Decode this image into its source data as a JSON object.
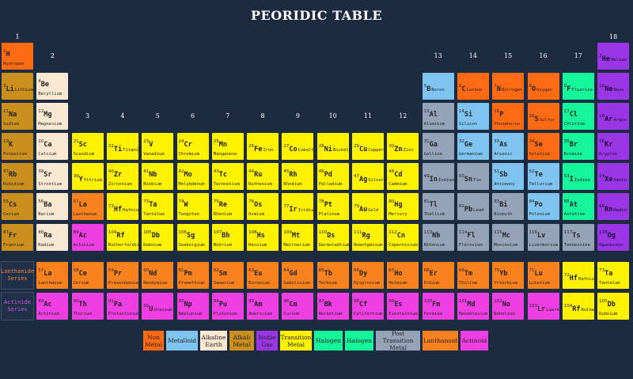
{
  "title": "PEORIDIC TABLE",
  "group_headers": [
    {
      "label": "1",
      "col": 1,
      "row": 0
    },
    {
      "label": "2",
      "col": 2,
      "row": 1
    },
    {
      "label": "13",
      "col": 13,
      "row": 1
    },
    {
      "label": "14",
      "col": 14,
      "row": 1
    },
    {
      "label": "15",
      "col": 15,
      "row": 1
    },
    {
      "label": "16",
      "col": 16,
      "row": 1
    },
    {
      "label": "17",
      "col": 17,
      "row": 1
    },
    {
      "label": "18",
      "col": 18,
      "row": 0
    },
    {
      "label": "3",
      "col": 3,
      "row": 3
    },
    {
      "label": "4",
      "col": 4,
      "row": 3
    },
    {
      "label": "5",
      "col": 5,
      "row": 3
    },
    {
      "label": "6",
      "col": 6,
      "row": 3
    },
    {
      "label": "7",
      "col": 7,
      "row": 3
    },
    {
      "label": "8",
      "col": 8,
      "row": 3
    },
    {
      "label": "9",
      "col": 9,
      "row": 3
    },
    {
      "label": "10",
      "col": 10,
      "row": 3
    },
    {
      "label": "11",
      "col": 11,
      "row": 3
    },
    {
      "label": "12",
      "col": 12,
      "row": 3
    }
  ],
  "colors": {
    "nonmetal": "#ff6a13",
    "metalloid": "#7fc4f1",
    "alkaline": "#fae9d2",
    "alkali": "#cb8f1e",
    "noble": "#9b36e7",
    "transition": "#fff200",
    "halogen": "#15f59a",
    "posttransition": "#95a3b8",
    "lanthanide": "#fa821e",
    "actinide": "#ef3fe3",
    "lanthanide_label": "#f28a3f",
    "actinide_label": "#ca5ce0"
  },
  "series_labels": {
    "lanthanide": "Lanthanide Series",
    "actinide": "Actinide Series"
  },
  "legend": [
    {
      "label": "Non Metal",
      "cat": "nonmetal"
    },
    {
      "label": "Metalloid",
      "cat": "metalloid"
    },
    {
      "label": "Alkaline Earth",
      "cat": "alkaline"
    },
    {
      "label": "Alkali Metal",
      "cat": "alkali"
    },
    {
      "label": "Noble Gas",
      "cat": "noble"
    },
    {
      "label": "Transition Metal",
      "cat": "transition"
    },
    {
      "label": "Halogen",
      "cat": "halogen"
    },
    {
      "label": "Halogen",
      "cat": "halogen"
    },
    {
      "label": "Post Transition Metal",
      "cat": "posttransition"
    },
    {
      "label": "Lanthanoid",
      "cat": "lanthanide"
    },
    {
      "label": "Actinoid",
      "cat": "actinide"
    }
  ],
  "elements": [
    {
      "n": 1,
      "s": "H",
      "name": "Hydrogen",
      "cat": "nonmetal",
      "col": 1,
      "row": 1
    },
    {
      "n": 2,
      "s": "He",
      "name": "Helium",
      "cat": "noble",
      "col": 18,
      "row": 1,
      "inline": true
    },
    {
      "n": 3,
      "s": "Li",
      "name": "Lithium",
      "cat": "alkali",
      "col": 1,
      "row": 2,
      "inline": true
    },
    {
      "n": 4,
      "s": "Be",
      "name": "Beryllium",
      "cat": "alkaline",
      "col": 2,
      "row": 2
    },
    {
      "n": 5,
      "s": "B",
      "name": "Boron",
      "cat": "metalloid",
      "col": 13,
      "row": 2,
      "inline": true
    },
    {
      "n": 6,
      "s": "C",
      "name": "Carbon",
      "cat": "nonmetal",
      "col": 14,
      "row": 2,
      "inline": true
    },
    {
      "n": 7,
      "s": "N",
      "name": "Nitrogen",
      "cat": "nonmetal",
      "col": 15,
      "row": 2,
      "inline": true
    },
    {
      "n": 8,
      "s": "O",
      "name": "Oxygen",
      "cat": "nonmetal",
      "col": 16,
      "row": 2,
      "inline": true
    },
    {
      "n": 9,
      "s": "F",
      "name": "Fluorine",
      "cat": "halogen",
      "col": 17,
      "row": 2,
      "inline": true
    },
    {
      "n": 10,
      "s": "Ne",
      "name": "Neon",
      "cat": "noble",
      "col": 18,
      "row": 2,
      "inline": true
    },
    {
      "n": 11,
      "s": "Na",
      "name": "Sodium",
      "cat": "alkali",
      "col": 1,
      "row": 3
    },
    {
      "n": 12,
      "s": "Mg",
      "name": "Magnesium",
      "cat": "alkaline",
      "col": 2,
      "row": 3
    },
    {
      "n": 13,
      "s": "Al",
      "name": "Aluminum",
      "cat": "posttransition",
      "col": 13,
      "row": 3
    },
    {
      "n": 14,
      "s": "Si",
      "name": "Silicon",
      "cat": "metalloid",
      "col": 14,
      "row": 3
    },
    {
      "n": 15,
      "s": "P",
      "name": "Phosphorus",
      "cat": "nonmetal",
      "col": 15,
      "row": 3
    },
    {
      "n": 16,
      "s": "S",
      "name": "Sulfur",
      "cat": "nonmetal",
      "col": 16,
      "row": 3,
      "inline": true
    },
    {
      "n": 17,
      "s": "Cl",
      "name": "Chlorine",
      "cat": "halogen",
      "col": 17,
      "row": 3
    },
    {
      "n": 18,
      "s": "Ar",
      "name": "Argon",
      "cat": "noble",
      "col": 18,
      "row": 3,
      "inline": true
    },
    {
      "n": 19,
      "s": "K",
      "name": "Potassium",
      "cat": "alkali",
      "col": 1,
      "row": 4
    },
    {
      "n": 20,
      "s": "Ca",
      "name": "Calcium",
      "cat": "alkaline",
      "col": 2,
      "row": 4
    },
    {
      "n": 21,
      "s": "Sc",
      "name": "Scandium",
      "cat": "transition",
      "col": 3,
      "row": 4
    },
    {
      "n": 22,
      "s": "Ti",
      "name": "Titanium",
      "cat": "transition",
      "col": 4,
      "row": 4,
      "inline": true
    },
    {
      "n": 23,
      "s": "V",
      "name": "Vanadium",
      "cat": "transition",
      "col": 5,
      "row": 4
    },
    {
      "n": 24,
      "s": "Cr",
      "name": "Chromium",
      "cat": "transition",
      "col": 6,
      "row": 4
    },
    {
      "n": 25,
      "s": "Mn",
      "name": "Manganese",
      "cat": "transition",
      "col": 7,
      "row": 4
    },
    {
      "n": 26,
      "s": "Fe",
      "name": "Iron",
      "cat": "transition",
      "col": 8,
      "row": 4,
      "inline": true
    },
    {
      "n": 27,
      "s": "Co",
      "name": "Cobalt",
      "cat": "transition",
      "col": 9,
      "row": 4,
      "inline": true
    },
    {
      "n": 28,
      "s": "Ni",
      "name": "Nickel",
      "cat": "transition",
      "col": 10,
      "row": 4,
      "inline": true
    },
    {
      "n": 29,
      "s": "Cu",
      "name": "Copper",
      "cat": "transition",
      "col": 11,
      "row": 4,
      "inline": true
    },
    {
      "n": 30,
      "s": "Zn",
      "name": "Zinc",
      "cat": "transition",
      "col": 12,
      "row": 4,
      "inline": true
    },
    {
      "n": 31,
      "s": "Ga",
      "name": "Gallium",
      "cat": "posttransition",
      "col": 13,
      "row": 4
    },
    {
      "n": 32,
      "s": "Ge",
      "name": "Germanium",
      "cat": "metalloid",
      "col": 14,
      "row": 4
    },
    {
      "n": 33,
      "s": "As",
      "name": "Arsenic",
      "cat": "metalloid",
      "col": 15,
      "row": 4
    },
    {
      "n": 34,
      "s": "Se",
      "name": "Selenium",
      "cat": "nonmetal",
      "col": 16,
      "row": 4
    },
    {
      "n": 35,
      "s": "Br",
      "name": "Bromine",
      "cat": "halogen",
      "col": 17,
      "row": 4
    },
    {
      "n": 36,
      "s": "Kr",
      "name": "Krypton",
      "cat": "noble",
      "col": 18,
      "row": 4
    },
    {
      "n": 37,
      "s": "Rb",
      "name": "Rubidium",
      "cat": "alkali",
      "col": 1,
      "row": 5
    },
    {
      "n": 38,
      "s": "Sr",
      "name": "Strontium",
      "cat": "alkaline",
      "col": 2,
      "row": 5
    },
    {
      "n": 39,
      "s": "Y",
      "name": "Yttrium",
      "cat": "transition",
      "col": 3,
      "row": 5,
      "inline": true
    },
    {
      "n": 40,
      "s": "Zr",
      "name": "Zirconium",
      "cat": "transition",
      "col": 4,
      "row": 5
    },
    {
      "n": 41,
      "s": "Nb",
      "name": "Niobium",
      "cat": "transition",
      "col": 5,
      "row": 5
    },
    {
      "n": 42,
      "s": "Mo",
      "name": "Molybdenum",
      "cat": "transition",
      "col": 6,
      "row": 5
    },
    {
      "n": 43,
      "s": "Tc",
      "name": "Technetium",
      "cat": "transition",
      "col": 7,
      "row": 5
    },
    {
      "n": 44,
      "s": "Ru",
      "name": "Ruthenium",
      "cat": "transition",
      "col": 8,
      "row": 5
    },
    {
      "n": 45,
      "s": "Rh",
      "name": "Rhodium",
      "cat": "transition",
      "col": 9,
      "row": 5
    },
    {
      "n": 46,
      "s": "Pd",
      "name": "Palladium",
      "cat": "transition",
      "col": 10,
      "row": 5
    },
    {
      "n": 47,
      "s": "Ag",
      "name": "Silver",
      "cat": "transition",
      "col": 11,
      "row": 5,
      "inline": true
    },
    {
      "n": 48,
      "s": "Cd",
      "name": "Cadmium",
      "cat": "transition",
      "col": 12,
      "row": 5
    },
    {
      "n": 49,
      "s": "In",
      "name": "Indium",
      "cat": "posttransition",
      "col": 13,
      "row": 5,
      "inline": true
    },
    {
      "n": 50,
      "s": "Sn",
      "name": "Tin",
      "cat": "posttransition",
      "col": 14,
      "row": 5,
      "inline": true
    },
    {
      "n": 51,
      "s": "Sb",
      "name": "Antimony",
      "cat": "metalloid",
      "col": 15,
      "row": 5
    },
    {
      "n": 52,
      "s": "Te",
      "name": "Tellurium",
      "cat": "metalloid",
      "col": 16,
      "row": 5
    },
    {
      "n": 53,
      "s": "I",
      "name": "Iodine",
      "cat": "halogen",
      "col": 17,
      "row": 5,
      "inline": true
    },
    {
      "n": 54,
      "s": "Xe",
      "name": "Xenon",
      "cat": "noble",
      "col": 18,
      "row": 5,
      "inline": true
    },
    {
      "n": 55,
      "s": "Cs",
      "name": "Cesium",
      "cat": "alkali",
      "col": 1,
      "row": 6
    },
    {
      "n": 56,
      "s": "Ba",
      "name": "Barium",
      "cat": "alkaline",
      "col": 2,
      "row": 6
    },
    {
      "n": 57,
      "s": "La",
      "name": "Lanthanum",
      "cat": "lanthanide",
      "col": 3,
      "row": 6
    },
    {
      "n": 72,
      "s": "Hf",
      "name": "Hafnium",
      "cat": "transition",
      "col": 4,
      "row": 6,
      "inline": true
    },
    {
      "n": 73,
      "s": "Ta",
      "name": "Tantalum",
      "cat": "transition",
      "col": 5,
      "row": 6
    },
    {
      "n": 74,
      "s": "W",
      "name": "Tungsten",
      "cat": "transition",
      "col": 6,
      "row": 6
    },
    {
      "n": 75,
      "s": "Re",
      "name": "Rhenium",
      "cat": "transition",
      "col": 7,
      "row": 6
    },
    {
      "n": 76,
      "s": "Os",
      "name": "Osmium",
      "cat": "transition",
      "col": 8,
      "row": 6
    },
    {
      "n": 77,
      "s": "Ir",
      "name": "Iridium",
      "cat": "transition",
      "col": 9,
      "row": 6,
      "inline": true
    },
    {
      "n": 78,
      "s": "Pt",
      "name": "Platinum",
      "cat": "transition",
      "col": 10,
      "row": 6
    },
    {
      "n": 79,
      "s": "Au",
      "name": "Gold",
      "cat": "transition",
      "col": 11,
      "row": 6,
      "inline": true
    },
    {
      "n": 80,
      "s": "Hg",
      "name": "Mercury",
      "cat": "transition",
      "col": 12,
      "row": 6
    },
    {
      "n": 81,
      "s": "Tl",
      "name": "Thallium",
      "cat": "posttransition",
      "col": 13,
      "row": 6
    },
    {
      "n": 82,
      "s": "Pb",
      "name": "Lead",
      "cat": "posttransition",
      "col": 14,
      "row": 6,
      "inline": true
    },
    {
      "n": 83,
      "s": "Bi",
      "name": "Bismuth",
      "cat": "posttransition",
      "col": 15,
      "row": 6
    },
    {
      "n": 84,
      "s": "Po",
      "name": "Polonium",
      "cat": "metalloid",
      "col": 16,
      "row": 6
    },
    {
      "n": 85,
      "s": "At",
      "name": "Astatine",
      "cat": "halogen",
      "col": 17,
      "row": 6
    },
    {
      "n": 86,
      "s": "Rn",
      "name": "Radon",
      "cat": "noble",
      "col": 18,
      "row": 6,
      "inline": true
    },
    {
      "n": 87,
      "s": "Fr",
      "name": "Francium",
      "cat": "alkali",
      "col": 1,
      "row": 7
    },
    {
      "n": 88,
      "s": "Ra",
      "name": "Radium",
      "cat": "alkaline",
      "col": 2,
      "row": 7
    },
    {
      "n": 89,
      "s": "Ac",
      "name": "Actinium",
      "cat": "actinide",
      "col": 3,
      "row": 7
    },
    {
      "n": 104,
      "s": "Rf",
      "name": "Rutherfordium",
      "cat": "transition",
      "col": 4,
      "row": 7
    },
    {
      "n": 105,
      "s": "Db",
      "name": "Dubnium",
      "cat": "transition",
      "col": 5,
      "row": 7
    },
    {
      "n": 106,
      "s": "Sg",
      "name": "Seaborgium",
      "cat": "transition",
      "col": 6,
      "row": 7
    },
    {
      "n": 107,
      "s": "Bh",
      "name": "Bohrium",
      "cat": "transition",
      "col": 7,
      "row": 7
    },
    {
      "n": 108,
      "s": "Hs",
      "name": "Hassium",
      "cat": "transition",
      "col": 8,
      "row": 7
    },
    {
      "n": 109,
      "s": "Mt",
      "name": "Meitnerium",
      "cat": "transition",
      "col": 9,
      "row": 7
    },
    {
      "n": 110,
      "s": "Ds",
      "name": "Darmstadtium",
      "cat": "transition",
      "col": 10,
      "row": 7
    },
    {
      "n": 111,
      "s": "Rg",
      "name": "Roentgenium",
      "cat": "transition",
      "col": 11,
      "row": 7
    },
    {
      "n": 112,
      "s": "Cn",
      "name": "Copernicium",
      "cat": "transition",
      "col": 12,
      "row": 7
    },
    {
      "n": 113,
      "s": "Nh",
      "name": "Nihonium",
      "cat": "posttransition",
      "col": 13,
      "row": 7
    },
    {
      "n": 114,
      "s": "Fl",
      "name": "Flerovium",
      "cat": "posttransition",
      "col": 14,
      "row": 7
    },
    {
      "n": 115,
      "s": "Mc",
      "name": "Moscovium",
      "cat": "posttransition",
      "col": 15,
      "row": 7
    },
    {
      "n": 116,
      "s": "Lv",
      "name": "Livermorium",
      "cat": "posttransition",
      "col": 16,
      "row": 7
    },
    {
      "n": 117,
      "s": "Ts",
      "name": "Tennessine",
      "cat": "posttransition",
      "col": 17,
      "row": 7
    },
    {
      "n": 118,
      "s": "Og",
      "name": "Oganesson",
      "cat": "noble",
      "col": 18,
      "row": 7
    },
    {
      "n": 57,
      "s": "La",
      "name": "Lanthanum",
      "cat": "lanthanide",
      "col": 2,
      "row": 8
    },
    {
      "n": 58,
      "s": "Ce",
      "name": "Cerium",
      "cat": "lanthanide",
      "col": 3,
      "row": 8
    },
    {
      "n": 59,
      "s": "Pr",
      "name": "Praseodymium",
      "cat": "lanthanide",
      "col": 4,
      "row": 8
    },
    {
      "n": 60,
      "s": "Nd",
      "name": "Neodymium",
      "cat": "lanthanide",
      "col": 5,
      "row": 8
    },
    {
      "n": 61,
      "s": "Pm",
      "name": "Promethium",
      "cat": "lanthanide",
      "col": 6,
      "row": 8
    },
    {
      "n": 62,
      "s": "Sm",
      "name": "Samarium",
      "cat": "lanthanide",
      "col": 7,
      "row": 8
    },
    {
      "n": 63,
      "s": "Eu",
      "name": "Europium",
      "cat": "lanthanide",
      "col": 8,
      "row": 8
    },
    {
      "n": 64,
      "s": "Gd",
      "name": "Gadolinium",
      "cat": "lanthanide",
      "col": 9,
      "row": 8
    },
    {
      "n": 65,
      "s": "Tb",
      "name": "Terbium",
      "cat": "lanthanide",
      "col": 10,
      "row": 8
    },
    {
      "n": 66,
      "s": "Dy",
      "name": "Dysprosium",
      "cat": "lanthanide",
      "col": 11,
      "row": 8
    },
    {
      "n": 67,
      "s": "Ho",
      "name": "Holmium",
      "cat": "lanthanide",
      "col": 12,
      "row": 8
    },
    {
      "n": 68,
      "s": "Er",
      "name": "Erbium",
      "cat": "lanthanide",
      "col": 13,
      "row": 8
    },
    {
      "n": 69,
      "s": "Tm",
      "name": "Thulium",
      "cat": "lanthanide",
      "col": 14,
      "row": 8
    },
    {
      "n": 70,
      "s": "Yb",
      "name": "Ytterbium",
      "cat": "lanthanide",
      "col": 15,
      "row": 8
    },
    {
      "n": 71,
      "s": "Lu",
      "name": "Lutetium",
      "cat": "lanthanide",
      "col": 16,
      "row": 8
    },
    {
      "n": 72,
      "s": "Hf",
      "name": "Hafnium",
      "cat": "transition",
      "col": 17,
      "row": 8,
      "inline": true
    },
    {
      "n": 73,
      "s": "Ta",
      "name": "Tantalum",
      "cat": "transition",
      "col": 18,
      "row": 8
    },
    {
      "n": 89,
      "s": "Ac",
      "name": "Actinium",
      "cat": "actinide",
      "col": 2,
      "row": 9
    },
    {
      "n": 90,
      "s": "Th",
      "name": "Thorium",
      "cat": "actinide",
      "col": 3,
      "row": 9
    },
    {
      "n": 91,
      "s": "Pa",
      "name": "Protactinium",
      "cat": "actinide",
      "col": 4,
      "row": 9
    },
    {
      "n": 92,
      "s": "U",
      "name": "Uranium",
      "cat": "actinide",
      "col": 5,
      "row": 9,
      "inline": true
    },
    {
      "n": 93,
      "s": "Np",
      "name": "Neptunium",
      "cat": "actinide",
      "col": 6,
      "row": 9
    },
    {
      "n": 94,
      "s": "Pu",
      "name": "Plutonium",
      "cat": "actinide",
      "col": 7,
      "row": 9
    },
    {
      "n": 95,
      "s": "Am",
      "name": "Americium",
      "cat": "actinide",
      "col": 8,
      "row": 9
    },
    {
      "n": 96,
      "s": "Cm",
      "name": "Curium",
      "cat": "actinide",
      "col": 9,
      "row": 9
    },
    {
      "n": 97,
      "s": "Bk",
      "name": "Berkelium",
      "cat": "actinide",
      "col": 10,
      "row": 9
    },
    {
      "n": 98,
      "s": "Cf",
      "name": "Californium",
      "cat": "actinide",
      "col": 11,
      "row": 9
    },
    {
      "n": 99,
      "s": "Es",
      "name": "Einsteinium",
      "cat": "actinide",
      "col": 12,
      "row": 9
    },
    {
      "n": 100,
      "s": "Fm",
      "name": "Fermium",
      "cat": "actinide",
      "col": 13,
      "row": 9
    },
    {
      "n": 101,
      "s": "Md",
      "name": "Mendelevium",
      "cat": "actinide",
      "col": 14,
      "row": 9
    },
    {
      "n": 102,
      "s": "No",
      "name": "Nobelium",
      "cat": "actinide",
      "col": 15,
      "row": 9
    },
    {
      "n": 103,
      "s": "Lr",
      "name": "Lawrencium",
      "cat": "actinide",
      "col": 16,
      "row": 9,
      "inline": true
    },
    {
      "n": 104,
      "s": "Rf",
      "name": "Rutherfordium",
      "cat": "transition",
      "col": 17,
      "row": 9,
      "inline": true
    },
    {
      "n": 105,
      "s": "Db",
      "name": "Dubnium",
      "cat": "transition",
      "col": 18,
      "row": 9
    }
  ]
}
